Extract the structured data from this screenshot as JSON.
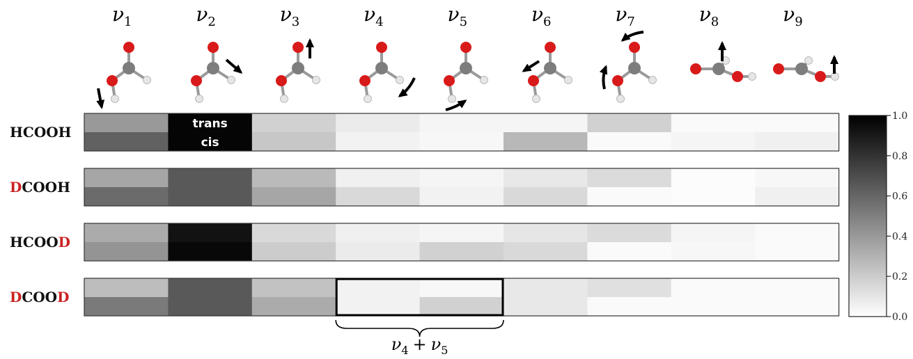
{
  "chart_data": {
    "type": "heatmap",
    "modes": [
      {
        "symbol": "ν",
        "sub": "1"
      },
      {
        "symbol": "ν",
        "sub": "2"
      },
      {
        "symbol": "ν",
        "sub": "3"
      },
      {
        "symbol": "ν",
        "sub": "4"
      },
      {
        "symbol": "ν",
        "sub": "5"
      },
      {
        "symbol": "ν",
        "sub": "6"
      },
      {
        "symbol": "ν",
        "sub": "7"
      },
      {
        "symbol": "ν",
        "sub": "8"
      },
      {
        "symbol": "ν",
        "sub": "9"
      }
    ],
    "conformers": [
      "trans",
      "cis"
    ],
    "molecules": [
      {
        "parts": [
          {
            "text": "HCOOH",
            "red": false
          }
        ],
        "trans": [
          0.4,
          0.98,
          0.18,
          0.08,
          0.04,
          0.04,
          0.18,
          0.02,
          0.02
        ],
        "cis": [
          0.62,
          0.98,
          0.22,
          0.05,
          0.03,
          0.28,
          0.02,
          0.04,
          0.06
        ]
      },
      {
        "parts": [
          {
            "text": "D",
            "red": true
          },
          {
            "text": "COOH",
            "red": false
          }
        ],
        "trans": [
          0.35,
          0.65,
          0.27,
          0.06,
          0.04,
          0.09,
          0.14,
          0.01,
          0.03
        ],
        "cis": [
          0.58,
          0.65,
          0.35,
          0.15,
          0.05,
          0.15,
          0.02,
          0.01,
          0.06
        ]
      },
      {
        "parts": [
          {
            "text": "HCOO",
            "red": false
          },
          {
            "text": "D",
            "red": true
          }
        ],
        "trans": [
          0.33,
          0.93,
          0.15,
          0.06,
          0.04,
          0.1,
          0.14,
          0.04,
          0.02
        ],
        "cis": [
          0.42,
          0.97,
          0.2,
          0.08,
          0.18,
          0.15,
          0.02,
          0.03,
          0.02
        ]
      },
      {
        "parts": [
          {
            "text": "D",
            "red": true
          },
          {
            "text": "COO",
            "red": false
          },
          {
            "text": "D",
            "red": true
          }
        ],
        "trans": [
          0.26,
          0.65,
          0.24,
          0.05,
          0.03,
          0.09,
          0.12,
          0.02,
          0.02
        ],
        "cis": [
          0.52,
          0.65,
          0.33,
          0.05,
          0.18,
          0.09,
          0.02,
          0.02,
          0.02
        ]
      }
    ],
    "colorbar": {
      "min": 0.0,
      "max": 1.0,
      "ticks": [
        "0.0",
        "0.2",
        "0.4",
        "0.6",
        "0.8",
        "1.0"
      ]
    },
    "colormap": "grays",
    "highlight": {
      "modes": [
        4,
        5
      ],
      "molecule_index": 3,
      "label": {
        "a": "ν",
        "a_sub": "4",
        "op": "+",
        "b": "ν",
        "b_sub": "5"
      }
    },
    "accent_color": "#cc2222"
  }
}
